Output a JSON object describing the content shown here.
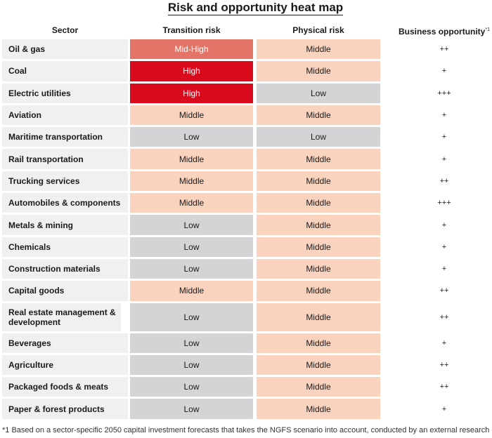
{
  "title": "Risk and opportunity heat map",
  "headers": {
    "sector": "Sector",
    "transition": "Transition risk",
    "physical": "Physical risk",
    "business": "Business opportunity",
    "business_mark": "*1"
  },
  "colors": {
    "High": "#d90b1c",
    "Mid-High": "#e27468",
    "Middle": "#fad3bf",
    "Low": "#d4d4d6"
  },
  "chart_data": {
    "type": "table",
    "title": "Risk and opportunity heat map",
    "columns": [
      "Sector",
      "Transition risk",
      "Physical risk",
      "Business opportunity"
    ],
    "rows": [
      {
        "sector": "Oil & gas",
        "transition": "Mid-High",
        "physical": "Middle",
        "business": "++"
      },
      {
        "sector": "Coal",
        "transition": "High",
        "physical": "Middle",
        "business": "+"
      },
      {
        "sector": "Electric utilities",
        "transition": "High",
        "physical": "Low",
        "business": "+++"
      },
      {
        "sector": "Aviation",
        "transition": "Middle",
        "physical": "Middle",
        "business": "+"
      },
      {
        "sector": "Maritime transportation",
        "transition": "Low",
        "physical": "Low",
        "business": "+"
      },
      {
        "sector": "Rail transportation",
        "transition": "Middle",
        "physical": "Middle",
        "business": "+"
      },
      {
        "sector": "Trucking services",
        "transition": "Middle",
        "physical": "Middle",
        "business": "++"
      },
      {
        "sector": "Automobiles & components",
        "transition": "Middle",
        "physical": "Middle",
        "business": "+++"
      },
      {
        "sector": "Metals & mining",
        "transition": "Low",
        "physical": "Middle",
        "business": "+"
      },
      {
        "sector": "Chemicals",
        "transition": "Low",
        "physical": "Middle",
        "business": "+"
      },
      {
        "sector": "Construction materials",
        "transition": "Low",
        "physical": "Middle",
        "business": "+"
      },
      {
        "sector": "Capital goods",
        "transition": "Middle",
        "physical": "Middle",
        "business": "++"
      },
      {
        "sector": "Real estate management & development",
        "transition": "Low",
        "physical": "Middle",
        "business": "++"
      },
      {
        "sector": "Beverages",
        "transition": "Low",
        "physical": "Middle",
        "business": "+"
      },
      {
        "sector": "Agriculture",
        "transition": "Low",
        "physical": "Middle",
        "business": "++"
      },
      {
        "sector": "Packaged foods & meats",
        "transition": "Low",
        "physical": "Middle",
        "business": "++"
      },
      {
        "sector": "Paper & forest products",
        "transition": "Low",
        "physical": "Middle",
        "business": "+"
      }
    ]
  },
  "footnote": "*1 Based on a sector-specific 2050 capital investment forecasts that takes the NGFS scenario into account, conducted by an external research organization."
}
